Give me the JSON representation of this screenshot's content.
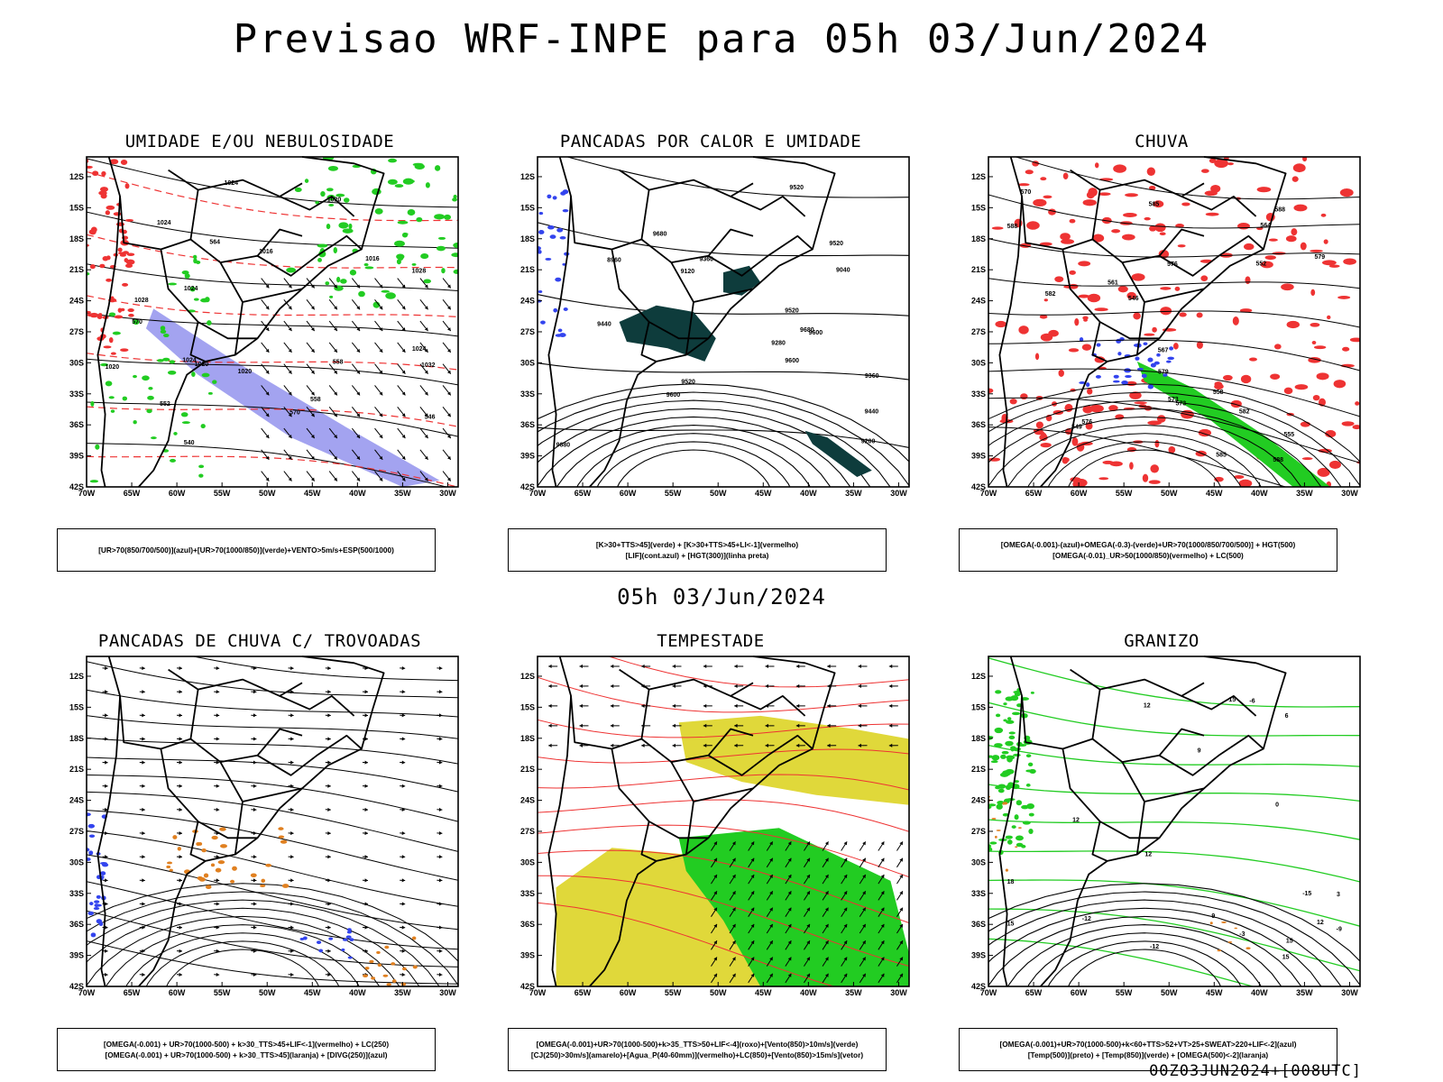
{
  "title": "Previsao WRF-INPE  para 05h 03/Jun/2024",
  "mid_title": "05h 03/Jun/2024",
  "footer": "00Z03JUN2024+[008UTC]",
  "axes": {
    "lat_ticks": [
      "12S",
      "15S",
      "18S",
      "21S",
      "24S",
      "27S",
      "30S",
      "33S",
      "36S",
      "39S",
      "42S"
    ],
    "lon_ticks": [
      "70W",
      "65W",
      "60W",
      "55W",
      "50W",
      "45W",
      "40W",
      "35W",
      "30W"
    ]
  },
  "colors": {
    "green": "#22cc22",
    "red": "#ee3333",
    "blue": "#3344ee",
    "lavender": "#9999ee",
    "dark_teal": "#0e3c3c",
    "yellow": "#e0d83a",
    "orange": "#e08020",
    "black": "#000000"
  },
  "panels": [
    {
      "id": "umidade",
      "title": "UMIDADE E/OU NEBULOSIDADE",
      "legend": [
        "[UR>70(850/700/500)](azul)+[UR>70(1000/850)](verde)+VENTO>5m/s+ESP(500/1000)"
      ],
      "contour_labels": [
        "1020",
        "1016",
        "1020",
        "1024",
        "1020",
        "1024",
        "1024",
        "1020",
        "1024",
        "1028",
        "1028",
        "1032",
        "1024",
        "1016",
        "570",
        "570",
        "564",
        "558",
        "552",
        "546",
        "540",
        "558"
      ]
    },
    {
      "id": "pancadas_calor",
      "title": "PANCADAS POR CALOR E UMIDADE",
      "legend": [
        "[K>30+TTS>45](verde) + [K>30+TTS>45+LI<-1](vermelho)",
        "[LIF](cont.azul) + [HGT(300)](linha preta)"
      ],
      "contour_labels": [
        "9680",
        "9680",
        "9680",
        "9600",
        "9600",
        "9600",
        "9520",
        "9520",
        "9520",
        "9520",
        "9440",
        "9440",
        "9360",
        "9280",
        "9200",
        "9120",
        "9040",
        "8960",
        "9360"
      ]
    },
    {
      "id": "chuva",
      "title": "CHUVA",
      "legend": [
        "[OMEGA(-0.001)-(azul)+OMEGA(-0.3)-(verde)+UR>70(1000/850/700/500)] + HGT(500)",
        "[OMEGA(-0.01)_UR>50(1000/850)(vermelho) + LC(500)"
      ],
      "contour_labels": [
        "588",
        "588",
        "588",
        "585",
        "582",
        "579",
        "576",
        "573",
        "570",
        "567",
        "564",
        "561",
        "558",
        "555",
        "552",
        "549",
        "546",
        "585",
        "582",
        "579",
        "576",
        "573"
      ]
    },
    {
      "id": "pancadas_trovoadas",
      "title": "PANCADAS DE CHUVA C/ TROVOADAS",
      "legend": [
        "[OMEGA(-0.001) + UR>70(1000-500) + k>30_TTS>45+LIF<-1](vermelho) + LC(250)",
        "[OMEGA(-0.001) + UR>70(1000-500) + k>30_TTS>45](laranja) + [DIVG(250)](azul)"
      ],
      "contour_labels": []
    },
    {
      "id": "tempestade",
      "title": "TEMPESTADE",
      "legend": [
        "[OMEGA(-0.001)+UR>70(1000-500)+k>35_TTS>50+LIF<-4](roxo)+[Vento(850)>10m/s](verde)",
        "[CJ(250)>30m/s](amarelo)+[Agua_P(40-60mm)](vermelho)+LC(850)+[Vento(850)>15m/s](vetor)"
      ],
      "contour_labels": []
    },
    {
      "id": "granizo",
      "title": "GRANIZO",
      "legend": [
        "[OMEGA(-0.001)+UR>70(1000-500)+k<60+TTS>52+VT>25+SWEAT>220+LIF<-2](azul)",
        "[Temp(500)](preto) + [Temp(850)](verde) + [OMEGA(500)<-2](laranja)"
      ],
      "contour_labels": [
        "18",
        "15",
        "12",
        "9",
        "6",
        "3",
        "0",
        "-3",
        "-6",
        "-9",
        "-12",
        "-15",
        "15",
        "12",
        "12",
        "15",
        "12",
        "9",
        "-12",
        "-15"
      ]
    }
  ]
}
